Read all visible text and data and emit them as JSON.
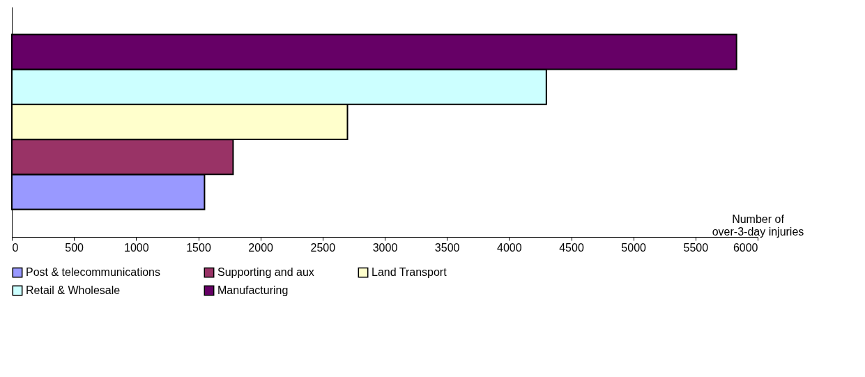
{
  "chart_data": {
    "type": "bar",
    "orientation": "horizontal",
    "categories": [
      null
    ],
    "xlabel": "Number of over-3-day injuries",
    "series": [
      {
        "name": "Post & telecommunications",
        "color": "#9999ff",
        "values": [
          1550
        ]
      },
      {
        "name": "Supporting and aux",
        "color": "#993366",
        "values": [
          1780
        ]
      },
      {
        "name": "Land Transport",
        "color": "#ffffcc",
        "values": [
          2700
        ]
      },
      {
        "name": "Retail & Wholesale",
        "color": "#ccffff",
        "values": [
          4300
        ]
      },
      {
        "name": "Manufacturing",
        "color": "#660066",
        "values": [
          5830
        ]
      }
    ],
    "xlim": [
      0,
      6000
    ],
    "xticks": [
      0,
      500,
      1000,
      1500,
      2000,
      2500,
      3000,
      3500,
      4000,
      4500,
      5000,
      5500,
      6000
    ],
    "grid": false,
    "legend": "bottom"
  }
}
